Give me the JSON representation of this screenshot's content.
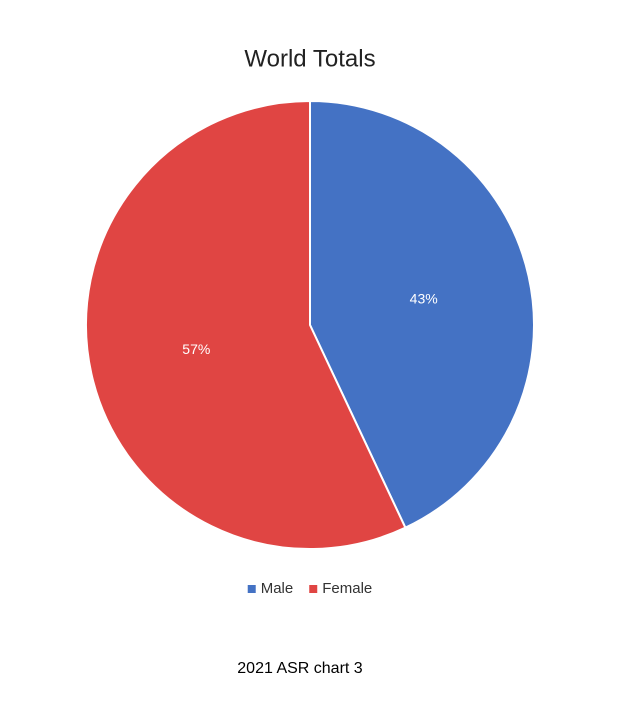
{
  "chart_data": {
    "type": "pie",
    "title": "World Totals",
    "categories": [
      "Male",
      "Female"
    ],
    "values": [
      43,
      57
    ],
    "value_labels": [
      "43%",
      "57%"
    ],
    "colors": [
      "#4472c4",
      "#e04543"
    ],
    "legend": "bottom",
    "caption": "2021 ASR chart 3"
  }
}
